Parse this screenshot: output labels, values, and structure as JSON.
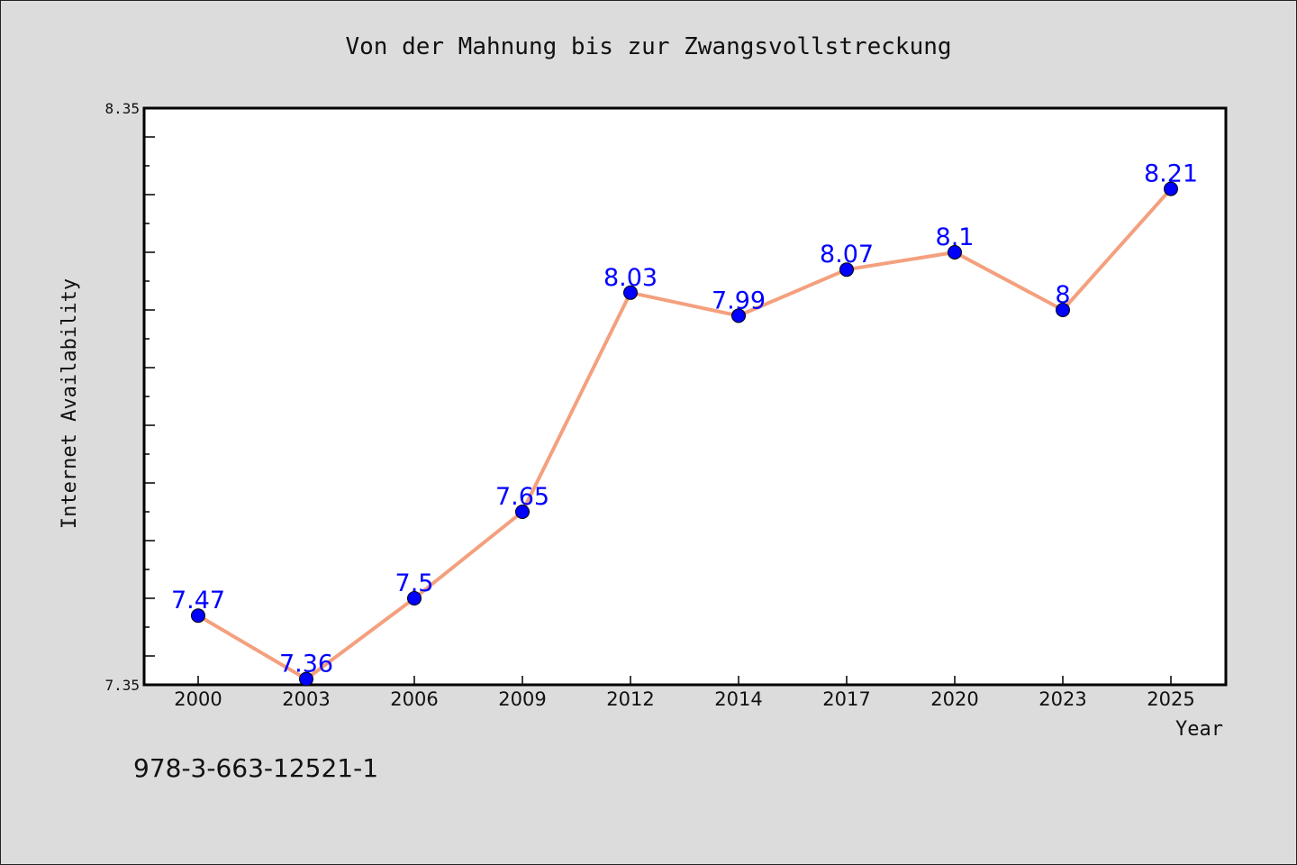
{
  "chart_data": {
    "type": "line",
    "title": "Von der Mahnung bis zur Zwangsvollstreckung",
    "xlabel": "Year",
    "ylabel": "Internet Availability",
    "categories": [
      "2000",
      "2003",
      "2006",
      "2009",
      "2012",
      "2014",
      "2017",
      "2020",
      "2023",
      "2025"
    ],
    "series": [
      {
        "values": [
          7.47,
          7.36,
          7.5,
          7.65,
          8.03,
          7.99,
          8.07,
          8.1,
          8.0,
          8.21
        ],
        "labels": [
          "7.47",
          "7.36",
          "7.5",
          "7.65",
          "8.03",
          "7.99",
          "8.07",
          "8.1",
          "8",
          "8.21"
        ]
      }
    ],
    "ylim": [
      7.35,
      8.35
    ],
    "y_tick_labels": [
      "7.35",
      "8.35"
    ],
    "grid": false,
    "colors": {
      "line": "#f4a07e",
      "marker": "#0000ff",
      "marker_edge": "#000000",
      "data_label": "#0000ff",
      "plot_background": "#ffffff",
      "figure_background": "#dcdcdc"
    }
  },
  "annotation": "978-3-663-12521-1"
}
